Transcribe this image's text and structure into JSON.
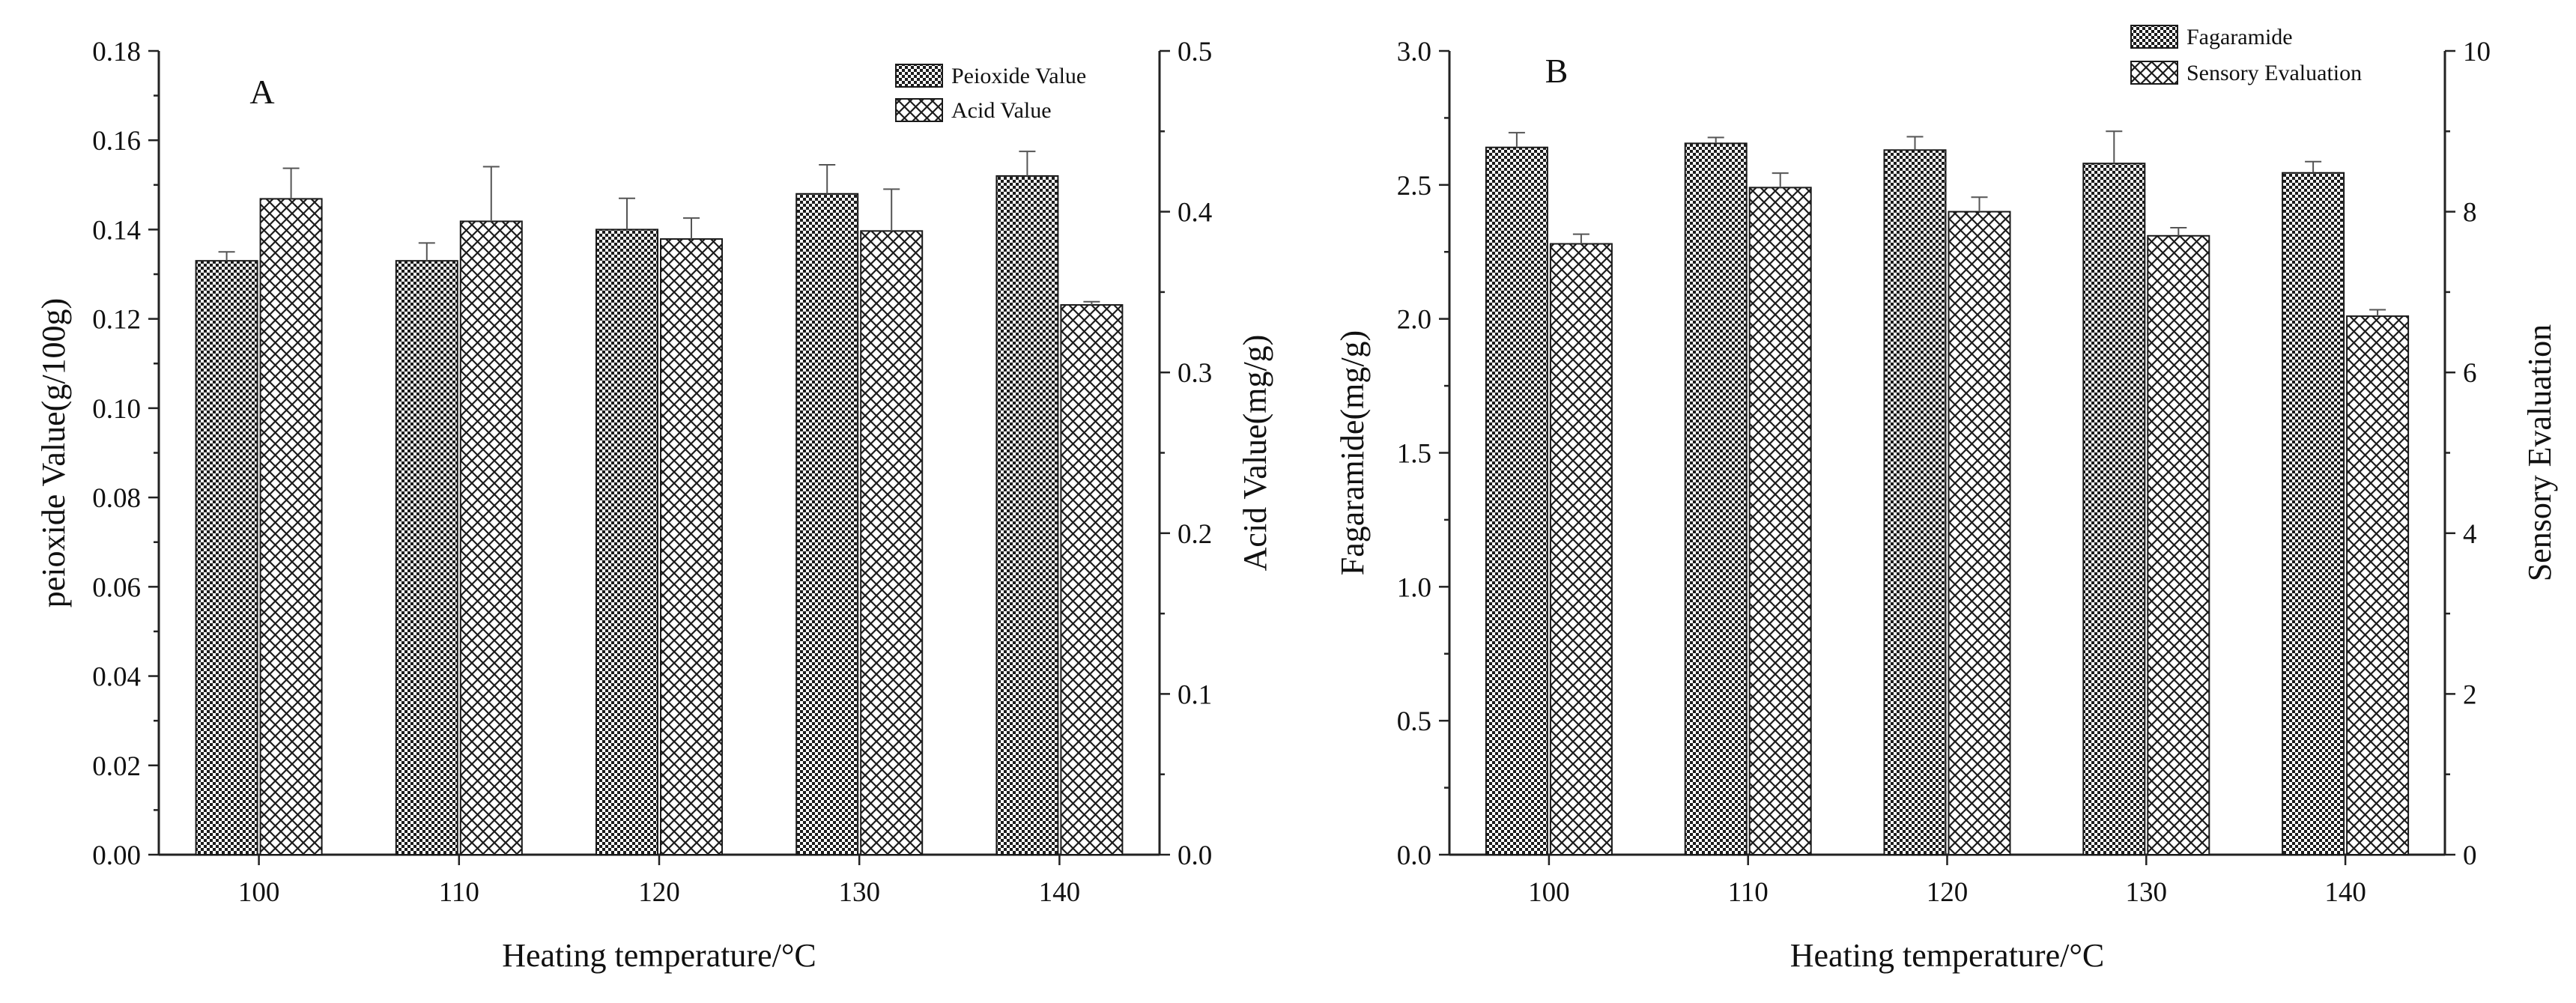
{
  "chart_data": [
    {
      "type": "bar",
      "panel_label": "A",
      "xlabel": "Heating temperature/°C",
      "categories": [
        "100",
        "110",
        "120",
        "130",
        "140"
      ],
      "y_left": {
        "label": "peioxide Value(g/100g)",
        "range": [
          0,
          0.18
        ],
        "ticks": [
          "0.00",
          "0.02",
          "0.04",
          "0.06",
          "0.08",
          "0.10",
          "0.12",
          "0.14",
          "0.16",
          "0.18"
        ]
      },
      "y_right": {
        "label": "Acid Value(mg/g)",
        "range": [
          0,
          0.5
        ],
        "ticks": [
          "0.0",
          "0.1",
          "0.2",
          "0.3",
          "0.4",
          "0.5"
        ]
      },
      "legend_position": "top-right",
      "series": [
        {
          "name": "Peioxide Value",
          "axis": "left",
          "pattern": "dense-check",
          "values": [
            0.133,
            0.133,
            0.14,
            0.148,
            0.152
          ],
          "errors": [
            0.002,
            0.004,
            0.007,
            0.0065,
            0.0055
          ]
        },
        {
          "name": "Acid Value",
          "axis": "right",
          "pattern": "cross-hatch",
          "values": [
            0.408,
            0.394,
            0.383,
            0.388,
            0.342
          ],
          "errors": [
            0.019,
            0.034,
            0.013,
            0.026,
            0.002
          ]
        }
      ]
    },
    {
      "type": "bar",
      "panel_label": "B",
      "xlabel": "Heating temperature/°C",
      "categories": [
        "100",
        "110",
        "120",
        "130",
        "140"
      ],
      "y_left": {
        "label": "Fagaramide(mg/g)",
        "range": [
          0,
          3.0
        ],
        "ticks": [
          "0.0",
          "0.5",
          "1.0",
          "1.5",
          "2.0",
          "2.5",
          "3.0"
        ]
      },
      "y_right": {
        "label": "Sensory Evaluation",
        "range": [
          0,
          10
        ],
        "ticks": [
          "0",
          "2",
          "4",
          "6",
          "8",
          "10"
        ]
      },
      "legend_position": "top-right",
      "series": [
        {
          "name": "Fagaramide",
          "axis": "left",
          "pattern": "dense-check",
          "values": [
            2.64,
            2.655,
            2.63,
            2.58,
            2.545
          ],
          "errors": [
            0.055,
            0.022,
            0.05,
            0.12,
            0.042
          ]
        },
        {
          "name": "Sensory Evaluation",
          "axis": "right",
          "pattern": "cross-hatch",
          "values": [
            7.6,
            8.3,
            8.0,
            7.7,
            6.7
          ],
          "errors": [
            0.12,
            0.18,
            0.18,
            0.1,
            0.08
          ]
        }
      ]
    }
  ]
}
